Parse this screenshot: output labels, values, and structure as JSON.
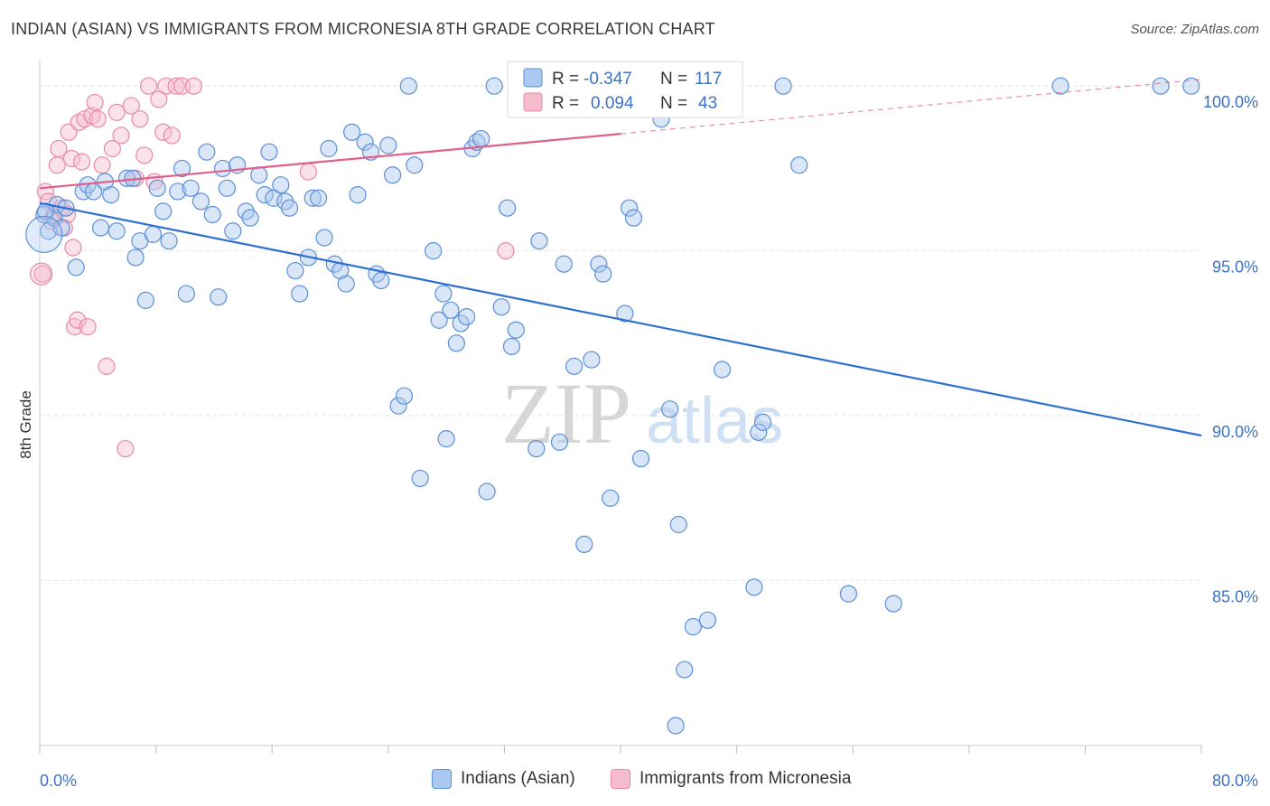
{
  "title": "INDIAN (ASIAN) VS IMMIGRANTS FROM MICRONESIA 8TH GRADE CORRELATION CHART",
  "source": "Source: ZipAtlas.com",
  "watermark": {
    "zip": "ZIP",
    "atlas": "atlas"
  },
  "colors": {
    "blue_fill": "#aac8f0",
    "blue_stroke": "#5b8fd6",
    "blue_line": "#2f6fd0",
    "pink_fill": "#f6bccd",
    "pink_stroke": "#e88aa7",
    "pink_line": "#e0608c",
    "tick_label": "#3d72c4",
    "grid": "#e4e4e4"
  },
  "legend": {
    "r_label": "R =",
    "n_label": "N =",
    "blue": {
      "r": "-0.347",
      "n": "117"
    },
    "pink": {
      "r": "0.094",
      "n": "43"
    }
  },
  "chart_data": {
    "type": "scatter",
    "xlabel": "",
    "ylabel": "8th Grade",
    "xlim": [
      0,
      80
    ],
    "ylim": [
      80,
      100.8
    ],
    "x_tick_labels": {
      "min": "0.0%",
      "max": "80.0%"
    },
    "y_ticks": [
      {
        "value": 85,
        "label": "85.0%"
      },
      {
        "value": 90,
        "label": "90.0%"
      },
      {
        "value": 95,
        "label": "95.0%"
      },
      {
        "value": 100,
        "label": "100.0%"
      }
    ],
    "grid": true,
    "series": [
      {
        "name": "Indians (Asian)",
        "color": "blue",
        "trend": {
          "x0": 0,
          "y0": 96.45,
          "x1": 80,
          "y1": 89.4
        },
        "points": [
          [
            0.3,
            96.1
          ],
          [
            0.6,
            95.6
          ],
          [
            1.0,
            96.0
          ],
          [
            1.2,
            96.4
          ],
          [
            1.5,
            95.7
          ],
          [
            1.8,
            96.3
          ],
          [
            2.5,
            94.5
          ],
          [
            3.0,
            96.8
          ],
          [
            3.3,
            97.0
          ],
          [
            3.7,
            96.8
          ],
          [
            4.2,
            95.7
          ],
          [
            4.5,
            97.1
          ],
          [
            4.9,
            96.7
          ],
          [
            5.3,
            95.6
          ],
          [
            6.0,
            97.2
          ],
          [
            6.4,
            97.2
          ],
          [
            6.6,
            94.8
          ],
          [
            6.9,
            95.3
          ],
          [
            7.3,
            93.5
          ],
          [
            7.8,
            95.5
          ],
          [
            8.1,
            96.9
          ],
          [
            8.5,
            96.2
          ],
          [
            8.9,
            95.3
          ],
          [
            9.5,
            96.8
          ],
          [
            9.8,
            97.5
          ],
          [
            10.1,
            93.7
          ],
          [
            10.4,
            96.9
          ],
          [
            11.1,
            96.5
          ],
          [
            11.5,
            98.0
          ],
          [
            11.9,
            96.1
          ],
          [
            12.3,
            93.6
          ],
          [
            12.6,
            97.5
          ],
          [
            12.9,
            96.9
          ],
          [
            13.3,
            95.6
          ],
          [
            13.6,
            97.6
          ],
          [
            14.2,
            96.2
          ],
          [
            14.5,
            96.0
          ],
          [
            15.1,
            97.3
          ],
          [
            15.5,
            96.7
          ],
          [
            15.8,
            98.0
          ],
          [
            16.1,
            96.6
          ],
          [
            16.6,
            97.0
          ],
          [
            16.9,
            96.5
          ],
          [
            17.2,
            96.3
          ],
          [
            17.6,
            94.4
          ],
          [
            17.9,
            93.7
          ],
          [
            18.5,
            94.8
          ],
          [
            18.8,
            96.6
          ],
          [
            19.2,
            96.6
          ],
          [
            19.6,
            95.4
          ],
          [
            19.9,
            98.1
          ],
          [
            20.3,
            94.6
          ],
          [
            20.7,
            94.4
          ],
          [
            21.1,
            94.0
          ],
          [
            21.5,
            98.6
          ],
          [
            21.9,
            96.7
          ],
          [
            22.4,
            98.3
          ],
          [
            22.8,
            98.0
          ],
          [
            23.2,
            94.3
          ],
          [
            23.5,
            94.1
          ],
          [
            24.0,
            98.2
          ],
          [
            24.3,
            97.3
          ],
          [
            24.7,
            90.3
          ],
          [
            25.1,
            90.6
          ],
          [
            25.4,
            100.0
          ],
          [
            25.8,
            97.6
          ],
          [
            26.2,
            88.1
          ],
          [
            27.1,
            95.0
          ],
          [
            27.5,
            92.9
          ],
          [
            27.8,
            93.7
          ],
          [
            28.3,
            93.2
          ],
          [
            28.7,
            92.2
          ],
          [
            29.0,
            92.8
          ],
          [
            29.4,
            93.0
          ],
          [
            29.8,
            98.1
          ],
          [
            30.1,
            98.3
          ],
          [
            30.4,
            98.4
          ],
          [
            30.8,
            87.7
          ],
          [
            31.3,
            100.0
          ],
          [
            31.8,
            93.3
          ],
          [
            32.2,
            96.3
          ],
          [
            32.5,
            92.1
          ],
          [
            32.8,
            92.6
          ],
          [
            34.2,
            89.0
          ],
          [
            34.4,
            95.3
          ],
          [
            35.8,
            89.2
          ],
          [
            36.1,
            94.6
          ],
          [
            36.8,
            91.5
          ],
          [
            37.5,
            86.1
          ],
          [
            38.0,
            91.7
          ],
          [
            38.5,
            94.6
          ],
          [
            38.8,
            94.3
          ],
          [
            39.3,
            87.5
          ],
          [
            40.3,
            93.1
          ],
          [
            40.6,
            96.3
          ],
          [
            40.9,
            96.0
          ],
          [
            41.4,
            88.7
          ],
          [
            43.4,
            90.2
          ],
          [
            44.0,
            86.7
          ],
          [
            45.0,
            83.6
          ],
          [
            46.0,
            83.8
          ],
          [
            47.0,
            91.4
          ],
          [
            49.2,
            84.8
          ],
          [
            49.5,
            89.5
          ],
          [
            49.8,
            89.8
          ],
          [
            51.2,
            100.0
          ],
          [
            52.3,
            97.6
          ],
          [
            55.7,
            84.6
          ],
          [
            58.8,
            84.3
          ],
          [
            70.3,
            100.0
          ],
          [
            77.2,
            100.0
          ],
          [
            79.3,
            100.0
          ],
          [
            43.8,
            80.6
          ],
          [
            44.4,
            82.3
          ],
          [
            0.4,
            96.2
          ],
          [
            28.0,
            89.3
          ],
          [
            42.8,
            99.0
          ]
        ]
      },
      {
        "name": "Immigrants from Micronesia",
        "color": "pink",
        "trend": {
          "x0": 0,
          "y0": 96.9,
          "x1": 40,
          "y1": 98.55
        },
        "trend_dashed": {
          "x0": 40,
          "y0": 98.55,
          "x1": 80,
          "y1": 100.2
        },
        "points": [
          [
            0.2,
            94.3
          ],
          [
            0.4,
            96.8
          ],
          [
            0.6,
            96.5
          ],
          [
            0.8,
            95.9
          ],
          [
            1.0,
            96.1
          ],
          [
            1.2,
            97.6
          ],
          [
            1.3,
            98.1
          ],
          [
            1.5,
            96.3
          ],
          [
            1.7,
            95.7
          ],
          [
            1.9,
            96.1
          ],
          [
            2.0,
            98.6
          ],
          [
            2.2,
            97.8
          ],
          [
            2.3,
            95.1
          ],
          [
            2.4,
            92.7
          ],
          [
            2.6,
            92.9
          ],
          [
            2.7,
            98.9
          ],
          [
            2.9,
            97.7
          ],
          [
            3.1,
            99.0
          ],
          [
            3.3,
            92.7
          ],
          [
            3.6,
            99.1
          ],
          [
            3.8,
            99.5
          ],
          [
            4.0,
            99.0
          ],
          [
            4.3,
            97.6
          ],
          [
            4.6,
            91.5
          ],
          [
            5.0,
            98.1
          ],
          [
            5.3,
            99.2
          ],
          [
            5.6,
            98.5
          ],
          [
            5.9,
            89.0
          ],
          [
            6.3,
            99.4
          ],
          [
            6.6,
            97.2
          ],
          [
            6.9,
            99.0
          ],
          [
            7.2,
            97.9
          ],
          [
            7.5,
            100.0
          ],
          [
            7.9,
            97.1
          ],
          [
            8.2,
            99.6
          ],
          [
            8.5,
            98.6
          ],
          [
            8.7,
            100.0
          ],
          [
            9.1,
            98.5
          ],
          [
            9.4,
            100.0
          ],
          [
            9.8,
            100.0
          ],
          [
            10.6,
            100.0
          ],
          [
            18.5,
            97.4
          ],
          [
            32.1,
            95.0
          ]
        ]
      }
    ]
  }
}
